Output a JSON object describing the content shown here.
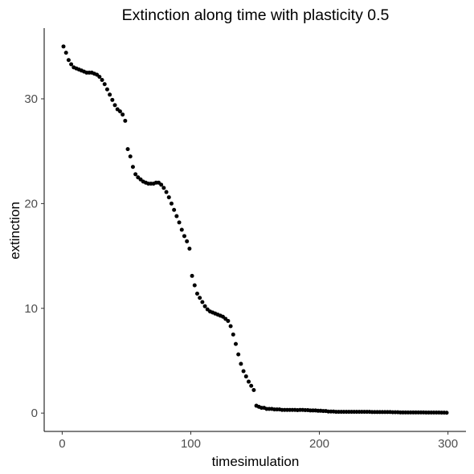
{
  "chart_data": {
    "type": "scatter",
    "title": "Extinction along time with plasticity 0.5",
    "xlabel": "timesimulation",
    "ylabel": "extinction",
    "xlim": [
      -14,
      314
    ],
    "ylim": [
      -1.75,
      36.75
    ],
    "xticks": [
      0,
      100,
      200,
      300
    ],
    "yticks": [
      0,
      10,
      20,
      30
    ],
    "grid": false,
    "legend": "none",
    "point_color": "#000000",
    "x": [
      1,
      3,
      5,
      7,
      9,
      11,
      13,
      15,
      17,
      19,
      21,
      23,
      25,
      27,
      29,
      31,
      33,
      35,
      37,
      39,
      41,
      43,
      45,
      47,
      49,
      51,
      53,
      55,
      57,
      59,
      61,
      63,
      65,
      67,
      69,
      71,
      73,
      75,
      77,
      79,
      81,
      83,
      85,
      87,
      89,
      91,
      93,
      95,
      97,
      99,
      101,
      103,
      105,
      107,
      109,
      111,
      113,
      115,
      117,
      119,
      121,
      123,
      125,
      127,
      129,
      131,
      133,
      135,
      137,
      139,
      141,
      143,
      145,
      147,
      149,
      151,
      153,
      155,
      157,
      159,
      161,
      163,
      165,
      167,
      169,
      171,
      173,
      175,
      177,
      179,
      181,
      183,
      185,
      187,
      189,
      191,
      193,
      195,
      197,
      199,
      201,
      203,
      205,
      207,
      209,
      211,
      213,
      215,
      217,
      219,
      221,
      223,
      225,
      227,
      229,
      231,
      233,
      235,
      237,
      239,
      241,
      243,
      245,
      247,
      249,
      251,
      253,
      255,
      257,
      259,
      261,
      263,
      265,
      267,
      269,
      271,
      273,
      275,
      277,
      279,
      281,
      283,
      285,
      287,
      289,
      291,
      293,
      295,
      297,
      299
    ],
    "y": [
      35.0,
      34.4,
      33.7,
      33.3,
      33.0,
      32.9,
      32.8,
      32.7,
      32.6,
      32.5,
      32.5,
      32.5,
      32.4,
      32.3,
      32.1,
      31.8,
      31.4,
      30.9,
      30.4,
      29.9,
      29.4,
      29.0,
      28.8,
      28.5,
      27.9,
      25.2,
      24.5,
      23.5,
      22.8,
      22.5,
      22.3,
      22.1,
      22.0,
      21.9,
      21.9,
      21.9,
      22.0,
      22.0,
      21.8,
      21.5,
      21.1,
      20.6,
      20.0,
      19.4,
      18.8,
      18.2,
      17.5,
      16.9,
      16.4,
      15.7,
      13.1,
      12.2,
      11.4,
      11.0,
      10.6,
      10.2,
      9.9,
      9.7,
      9.6,
      9.5,
      9.4,
      9.3,
      9.2,
      9.0,
      8.8,
      8.3,
      7.5,
      6.6,
      5.6,
      4.7,
      4.0,
      3.5,
      3.0,
      2.6,
      2.2,
      0.7,
      0.6,
      0.5,
      0.5,
      0.4,
      0.4,
      0.4,
      0.35,
      0.35,
      0.35,
      0.3,
      0.3,
      0.3,
      0.3,
      0.3,
      0.3,
      0.28,
      0.3,
      0.3,
      0.28,
      0.28,
      0.25,
      0.25,
      0.25,
      0.22,
      0.22,
      0.2,
      0.2,
      0.15,
      0.15,
      0.15,
      0.12,
      0.12,
      0.12,
      0.12,
      0.12,
      0.12,
      0.12,
      0.12,
      0.12,
      0.12,
      0.12,
      0.12,
      0.12,
      0.12,
      0.1,
      0.1,
      0.1,
      0.1,
      0.1,
      0.1,
      0.1,
      0.1,
      0.08,
      0.08,
      0.08,
      0.06,
      0.06,
      0.06,
      0.06,
      0.06,
      0.06,
      0.06,
      0.06,
      0.06,
      0.06,
      0.05,
      0.05,
      0.05,
      0.05,
      0.05,
      0.05,
      0.04,
      0.04,
      0.03
    ]
  }
}
